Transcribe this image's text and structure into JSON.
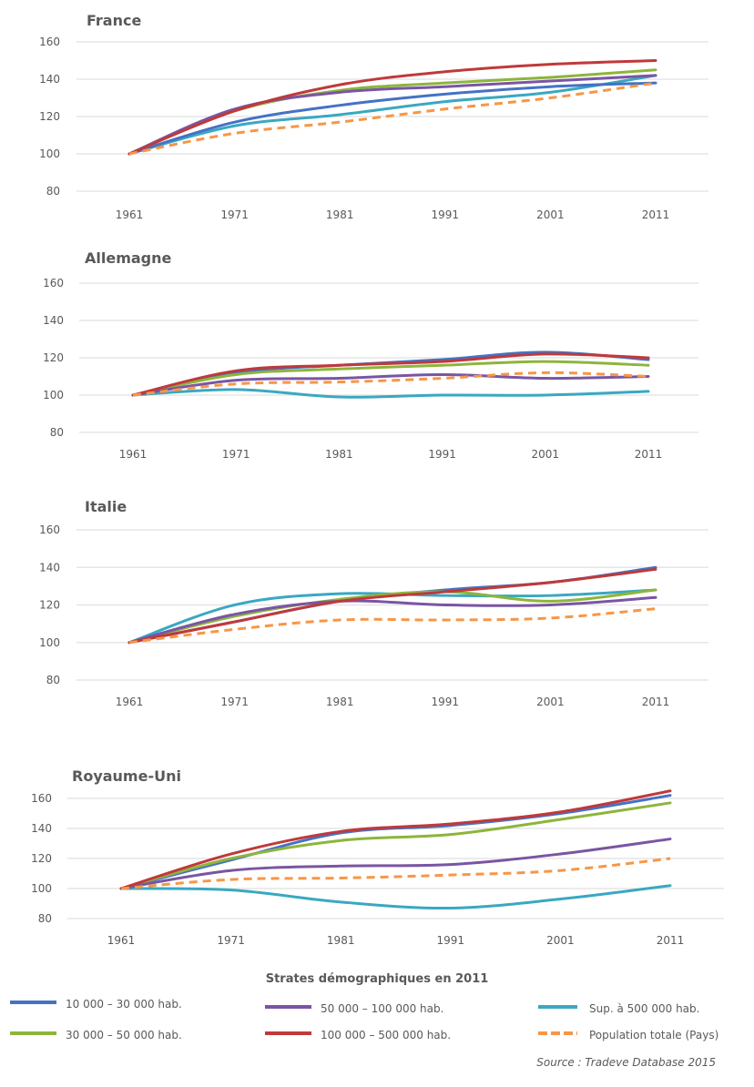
{
  "chart_data": [
    {
      "type": "line",
      "title": "France",
      "x": [
        1961,
        1971,
        1981,
        1991,
        2001,
        2011
      ],
      "ylim": [
        80,
        160
      ],
      "yticks": [
        80,
        100,
        120,
        140,
        160
      ],
      "grid": true,
      "series": [
        {
          "name": "10 000 – 30 000 hab.",
          "values": [
            100,
            117,
            126,
            132,
            136,
            138
          ]
        },
        {
          "name": "30 000 – 50 000 hab.",
          "values": [
            100,
            123,
            134,
            138,
            141,
            145
          ]
        },
        {
          "name": "50 000 – 100 000 hab.",
          "values": [
            100,
            124,
            133,
            136,
            139,
            142
          ]
        },
        {
          "name": "100 000 – 500 000 hab.",
          "values": [
            100,
            123,
            137,
            144,
            148,
            150
          ]
        },
        {
          "name": "Sup. à 500 000 hab.",
          "values": [
            100,
            115,
            121,
            128,
            133,
            142
          ]
        },
        {
          "name": "Population totale (Pays)",
          "values": [
            100,
            111,
            117,
            124,
            130,
            138
          ]
        }
      ]
    },
    {
      "type": "line",
      "title": "Allemagne",
      "x": [
        1961,
        1971,
        1981,
        1991,
        2001,
        2011
      ],
      "ylim": [
        80,
        160
      ],
      "yticks": [
        80,
        100,
        120,
        140,
        160
      ],
      "grid": true,
      "series": [
        {
          "name": "10 000 – 30 000 hab.",
          "values": [
            100,
            112,
            116,
            119,
            123,
            119
          ]
        },
        {
          "name": "30 000 – 50 000 hab.",
          "values": [
            100,
            111,
            114,
            116,
            118,
            116
          ]
        },
        {
          "name": "50 000 – 100 000 hab.",
          "values": [
            100,
            108,
            109,
            111,
            109,
            110
          ]
        },
        {
          "name": "100 000 – 500 000 hab.",
          "values": [
            100,
            113,
            116,
            118,
            122,
            120
          ]
        },
        {
          "name": "Sup. à 500 000 hab.",
          "values": [
            100,
            103,
            99,
            100,
            100,
            102
          ]
        },
        {
          "name": "Population totale (Pays)",
          "values": [
            100,
            106,
            107,
            109,
            112,
            110
          ]
        }
      ]
    },
    {
      "type": "line",
      "title": "Italie",
      "x": [
        1961,
        1971,
        1981,
        1991,
        2001,
        2011
      ],
      "ylim": [
        80,
        160
      ],
      "yticks": [
        80,
        100,
        120,
        140,
        160
      ],
      "grid": true,
      "series": [
        {
          "name": "10 000 – 30 000 hab.",
          "values": [
            100,
            111,
            122,
            128,
            132,
            140
          ]
        },
        {
          "name": "30 000 – 50 000 hab.",
          "values": [
            100,
            114,
            123,
            127,
            122,
            128
          ]
        },
        {
          "name": "50 000 – 100 000 hab.",
          "values": [
            100,
            115,
            122,
            120,
            120,
            124
          ]
        },
        {
          "name": "100 000 – 500 000 hab.",
          "values": [
            100,
            111,
            122,
            127,
            132,
            139
          ]
        },
        {
          "name": "Sup. à 500 000 hab.",
          "values": [
            100,
            120,
            126,
            125,
            125,
            128
          ]
        },
        {
          "name": "Population totale (Pays)",
          "values": [
            100,
            107,
            112,
            112,
            113,
            118
          ]
        }
      ]
    },
    {
      "type": "line",
      "title": "Royaume-Uni",
      "x": [
        1961,
        1971,
        1981,
        1991,
        2001,
        2011
      ],
      "ylim": [
        80,
        160
      ],
      "yticks": [
        80,
        100,
        120,
        140,
        160
      ],
      "grid": true,
      "series": [
        {
          "name": "10 000 – 30 000 hab.",
          "values": [
            100,
            119,
            137,
            142,
            150,
            162
          ]
        },
        {
          "name": "30 000 – 50 000 hab.",
          "values": [
            100,
            120,
            132,
            136,
            146,
            157
          ]
        },
        {
          "name": "50 000 – 100 000 hab.",
          "values": [
            100,
            112,
            115,
            116,
            123,
            133
          ]
        },
        {
          "name": "100 000 – 500 000 hab.",
          "values": [
            100,
            123,
            138,
            143,
            151,
            165
          ]
        },
        {
          "name": "Sup. à 500 000 hab.",
          "values": [
            100,
            99,
            91,
            87,
            93,
            102
          ]
        },
        {
          "name": "Population totale (Pays)",
          "values": [
            100,
            106,
            107,
            109,
            112,
            120
          ]
        }
      ]
    }
  ],
  "legend": {
    "title": "Strates démographiques en 2011",
    "items": [
      {
        "label": "10 000 – 30 000 hab.",
        "color": "#4472c4",
        "style": "solid"
      },
      {
        "label": "30 000 – 50 000 hab.",
        "color": "#8db53c",
        "style": "solid"
      },
      {
        "label": "50 000 – 100 000 hab.",
        "color": "#7a55a3",
        "style": "solid"
      },
      {
        "label": "100 000 – 500 000 hab.",
        "color": "#c0393b",
        "style": "solid"
      },
      {
        "label": "Sup. à 500 000 hab.",
        "color": "#3aa8c1",
        "style": "solid"
      },
      {
        "label": "Population totale (Pays)",
        "color": "#f79646",
        "style": "dashed"
      }
    ]
  },
  "source": "Source : Tradeve Database 2015"
}
